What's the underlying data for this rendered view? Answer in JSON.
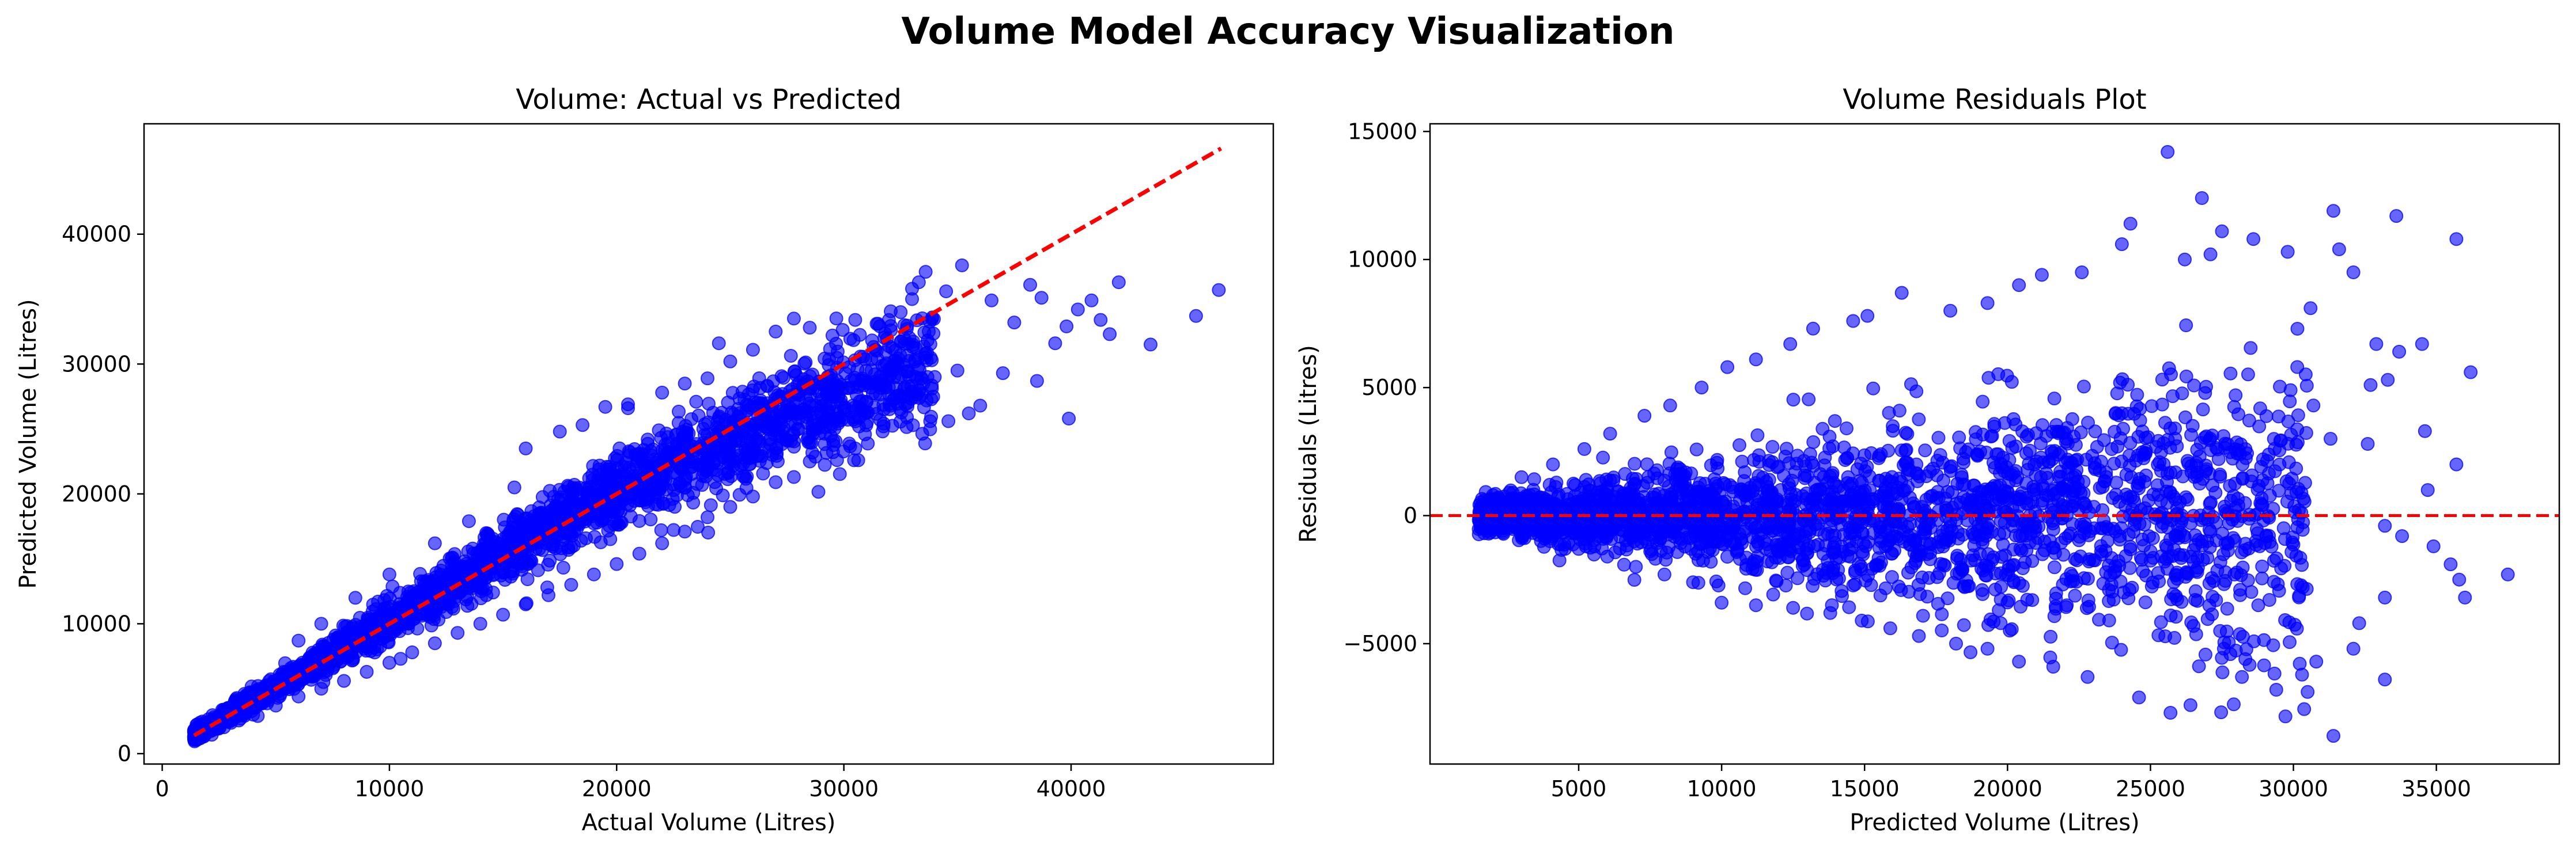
{
  "suptitle": "Volume Model Accuracy Visualization",
  "colors": {
    "points": "#0000ff",
    "reference": "#ff0000"
  },
  "chart_data": [
    {
      "type": "scatter",
      "title": "Volume: Actual vs Predicted",
      "xlabel": "Actual Volume (Litres)",
      "ylabel": "Predicted Volume (Litres)",
      "xlim": [
        -800,
        48900
      ],
      "ylim": [
        -800,
        48500
      ],
      "xticks": [
        0,
        10000,
        20000,
        30000,
        40000
      ],
      "yticks": [
        0,
        10000,
        20000,
        30000,
        40000
      ],
      "grid": false,
      "reference_line": {
        "style": "dashed",
        "color": "#ff0000",
        "x": [
          1400,
          46600
        ],
        "y": [
          1400,
          46600
        ]
      },
      "trend": {
        "type": "identity-with-curvature",
        "x_min": 1400,
        "x_max": 40000
      },
      "series": [
        {
          "points": [
            [
              1500,
              1700
            ],
            [
              2000,
              2300
            ],
            [
              3000,
              3200
            ],
            [
              4000,
              4300
            ],
            [
              5000,
              5400
            ],
            [
              6000,
              6300
            ],
            [
              7000,
              7600
            ],
            [
              8000,
              8600
            ],
            [
              9000,
              9200
            ],
            [
              10000,
              10500
            ],
            [
              11000,
              11600
            ],
            [
              12000,
              12300
            ],
            [
              13000,
              13500
            ],
            [
              14000,
              14500
            ],
            [
              15000,
              15600
            ],
            [
              16000,
              16500
            ],
            [
              17000,
              17300
            ],
            [
              18000,
              18200
            ],
            [
              19000,
              19400
            ],
            [
              20000,
              20000
            ],
            [
              21000,
              21000
            ],
            [
              22000,
              21800
            ],
            [
              23000,
              22500
            ],
            [
              24000,
              23200
            ],
            [
              25000,
              24000
            ],
            [
              26000,
              24500
            ],
            [
              27000,
              25200
            ],
            [
              28000,
              25800
            ],
            [
              29000,
              26200
            ],
            [
              30000,
              26600
            ],
            [
              31000,
              27100
            ],
            [
              32000,
              27600
            ],
            [
              33000,
              27900
            ],
            [
              33500,
              28500
            ],
            [
              34000,
              29000
            ],
            [
              35000,
              29500
            ],
            [
              16000,
              23500
            ],
            [
              17500,
              24800
            ],
            [
              18500,
              25300
            ],
            [
              19500,
              26700
            ],
            [
              20500,
              26600
            ],
            [
              22000,
              27800
            ],
            [
              23000,
              28500
            ],
            [
              24000,
              28900
            ],
            [
              25000,
              30200
            ],
            [
              26000,
              31100
            ],
            [
              27000,
              32500
            ],
            [
              27800,
              33500
            ],
            [
              28500,
              32800
            ],
            [
              29500,
              32200
            ],
            [
              30500,
              33400
            ],
            [
              31500,
              33100
            ],
            [
              32500,
              34000
            ],
            [
              33000,
              35000
            ],
            [
              33300,
              36300
            ],
            [
              33000,
              35800
            ],
            [
              35200,
              37600
            ],
            [
              34500,
              35600
            ],
            [
              36500,
              34900
            ],
            [
              37500,
              33200
            ],
            [
              38200,
              36100
            ],
            [
              38700,
              35100
            ],
            [
              39300,
              31600
            ],
            [
              39800,
              32900
            ],
            [
              40300,
              34200
            ],
            [
              40900,
              34900
            ],
            [
              41300,
              33400
            ],
            [
              41700,
              32300
            ],
            [
              42100,
              36300
            ],
            [
              39900,
              25800
            ],
            [
              38500,
              28700
            ],
            [
              37000,
              29300
            ],
            [
              36000,
              26800
            ],
            [
              35500,
              26200
            ],
            [
              34600,
              25600
            ],
            [
              33800,
              25600
            ],
            [
              32700,
              26900
            ],
            [
              31600,
              25700
            ],
            [
              30500,
              23500
            ],
            [
              29700,
              22600
            ],
            [
              28500,
              22500
            ],
            [
              27800,
              21300
            ],
            [
              27000,
              20900
            ],
            [
              26000,
              19800
            ],
            [
              25000,
              19000
            ],
            [
              24000,
              18200
            ],
            [
              23000,
              17100
            ],
            [
              22000,
              16200
            ],
            [
              21000,
              15400
            ],
            [
              20000,
              14600
            ],
            [
              19000,
              13800
            ],
            [
              18000,
              13000
            ],
            [
              17000,
              12200
            ],
            [
              16000,
              11500
            ],
            [
              15000,
              10700
            ],
            [
              14000,
              10000
            ],
            [
              13000,
              9300
            ],
            [
              12000,
              8500
            ],
            [
              11000,
              7800
            ],
            [
              10000,
              7000
            ],
            [
              9000,
              6300
            ],
            [
              8000,
              5600
            ],
            [
              7000,
              5000
            ],
            [
              6000,
              4400
            ],
            [
              5000,
              3700
            ],
            [
              4000,
              3000
            ],
            [
              3000,
              2500
            ],
            [
              43500,
              31500
            ],
            [
              45500,
              33700
            ],
            [
              46500,
              35700
            ],
            [
              13500,
              17900
            ],
            [
              12000,
              16200
            ],
            [
              10000,
              13800
            ],
            [
              8500,
              12000
            ],
            [
              7000,
              10000
            ],
            [
              6000,
              8700
            ],
            [
              24500,
              31600
            ],
            [
              15500,
              20500
            ],
            [
              20500,
              26900
            ],
            [
              23500,
              27100
            ]
          ]
        }
      ]
    },
    {
      "type": "scatter",
      "title": "Volume Residuals Plot",
      "xlabel": "Predicted Volume (Litres)",
      "ylabel": "Residuals (Litres)",
      "xlim": [
        -200,
        39300
      ],
      "ylim": [
        -9700,
        15300
      ],
      "xticks": [
        5000,
        10000,
        15000,
        20000,
        25000,
        30000,
        35000
      ],
      "yticks": [
        -5000,
        0,
        5000,
        10000,
        15000
      ],
      "grid": false,
      "reference_line": {
        "style": "dashed",
        "color": "#ff0000",
        "y": 0
      },
      "trend": {
        "type": "funnel",
        "x_min": 1500,
        "x_max": 37500,
        "spread": [
          600,
          6000
        ]
      },
      "series": [
        {
          "points": [
            [
              25600,
              14200
            ],
            [
              26800,
              12400
            ],
            [
              24300,
              11400
            ],
            [
              27500,
              11100
            ],
            [
              31400,
              11900
            ],
            [
              33600,
              11700
            ],
            [
              35700,
              10800
            ],
            [
              28600,
              10800
            ],
            [
              29800,
              10300
            ],
            [
              31600,
              10400
            ],
            [
              27100,
              10200
            ],
            [
              26200,
              10000
            ],
            [
              24000,
              10600
            ],
            [
              22600,
              9500
            ],
            [
              21200,
              9400
            ],
            [
              20400,
              9000
            ],
            [
              19300,
              8300
            ],
            [
              18000,
              8000
            ],
            [
              16300,
              8700
            ],
            [
              15100,
              7800
            ],
            [
              14600,
              7600
            ],
            [
              13200,
              7300
            ],
            [
              12400,
              6700
            ],
            [
              11200,
              6100
            ],
            [
              10200,
              5800
            ],
            [
              9300,
              5000
            ],
            [
              8200,
              4300
            ],
            [
              7300,
              3900
            ],
            [
              6100,
              3200
            ],
            [
              5200,
              2600
            ],
            [
              4100,
              2000
            ],
            [
              3000,
              1500
            ],
            [
              2000,
              800
            ],
            [
              32100,
              9500
            ],
            [
              30600,
              8100
            ],
            [
              32900,
              6700
            ],
            [
              34500,
              6700
            ],
            [
              33700,
              6400
            ],
            [
              36200,
              5600
            ],
            [
              32700,
              5100
            ],
            [
              33300,
              5300
            ],
            [
              29900,
              4900
            ],
            [
              30700,
              4300
            ],
            [
              31300,
              3000
            ],
            [
              32600,
              2800
            ],
            [
              34600,
              3300
            ],
            [
              35700,
              2000
            ],
            [
              34700,
              1000
            ],
            [
              33200,
              -400
            ],
            [
              33800,
              -800
            ],
            [
              34900,
              -1200
            ],
            [
              35500,
              -1900
            ],
            [
              35800,
              -2500
            ],
            [
              37500,
              -2300
            ],
            [
              36000,
              -3200
            ],
            [
              33200,
              -3200
            ],
            [
              32300,
              -4200
            ],
            [
              32100,
              -5200
            ],
            [
              33200,
              -6400
            ],
            [
              30800,
              -5700
            ],
            [
              31400,
              -8600
            ],
            [
              29400,
              -6800
            ],
            [
              28200,
              -6300
            ],
            [
              26400,
              -7400
            ],
            [
              25700,
              -7700
            ],
            [
              24600,
              -7100
            ],
            [
              22800,
              -6300
            ],
            [
              21600,
              -5900
            ],
            [
              20400,
              -5700
            ],
            [
              19300,
              -5200
            ],
            [
              18200,
              -5000
            ],
            [
              16900,
              -4700
            ],
            [
              15900,
              -4400
            ],
            [
              14900,
              -4100
            ],
            [
              13800,
              -3800
            ],
            [
              12500,
              -3600
            ],
            [
              11200,
              -3500
            ],
            [
              10000,
              -3400
            ],
            [
              9000,
              -2600
            ],
            [
              8000,
              -2300
            ],
            [
              7000,
              -2000
            ],
            [
              6000,
              -1600
            ],
            [
              5000,
              -1300
            ],
            [
              4000,
              -1000
            ],
            [
              3000,
              -800
            ],
            [
              2000,
              -500
            ],
            [
              1700,
              600
            ],
            [
              1800,
              -600
            ]
          ]
        }
      ]
    }
  ]
}
